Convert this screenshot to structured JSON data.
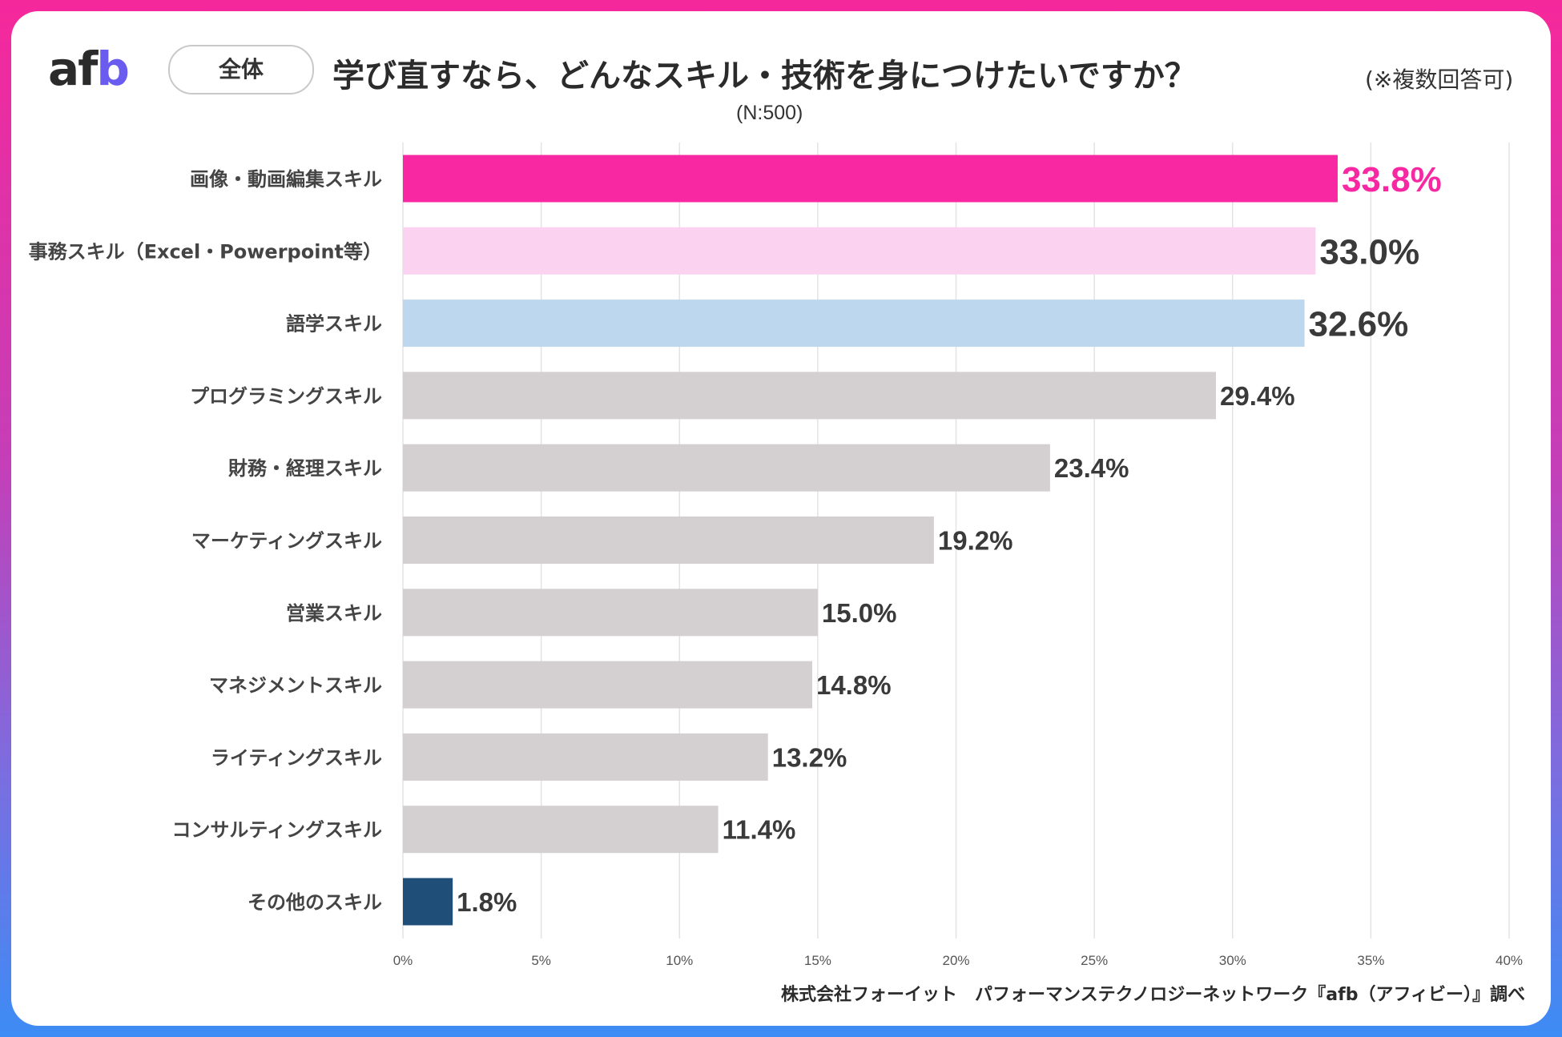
{
  "header": {
    "logo_a": "af",
    "logo_b": "b",
    "segment": "全体",
    "title": "学び直すなら、どんなスキル・技術を身につけたいですか？",
    "note": "(※複数回答可)",
    "sample": "(N:500)"
  },
  "footer": {
    "source": "株式会社フォーイット　パフォーマンステクノロジーネットワーク『afb（アフィビー）』調べ"
  },
  "colors": {
    "highlight": "#f728a1",
    "second": "#fbd3f1",
    "third": "#bdd7ee",
    "default": "#d4d0d1",
    "other": "#1f4e79",
    "label_default": "#3a3a3a"
  },
  "chart_data": {
    "type": "bar",
    "orientation": "horizontal",
    "title": "学び直すなら、どんなスキル・技術を身につけたいですか？",
    "categories": [
      "画像・動画編集スキル",
      "事務スキル（Excel・Powerpoint等）",
      "語学スキル",
      "プログラミングスキル",
      "財務・経理スキル",
      "マーケティングスキル",
      "営業スキル",
      "マネジメントスキル",
      "ライティングスキル",
      "コンサルティングスキル",
      "その他のスキル"
    ],
    "values": [
      33.8,
      33.0,
      32.6,
      29.4,
      23.4,
      19.2,
      15.0,
      14.8,
      13.2,
      11.4,
      1.8
    ],
    "value_labels": [
      "33.8%",
      "33.0%",
      "32.6%",
      "29.4%",
      "23.4%",
      "19.2%",
      "15.0%",
      "14.8%",
      "13.2%",
      "11.4%",
      "1.8%"
    ],
    "xlim": [
      0,
      40
    ],
    "xticks": [
      0,
      5,
      10,
      15,
      20,
      25,
      30,
      35,
      40
    ],
    "xtick_labels": [
      "0%",
      "5%",
      "10%",
      "15%",
      "20%",
      "25%",
      "30%",
      "35%",
      "40%"
    ],
    "grid": true,
    "xlabel": "",
    "ylabel": ""
  }
}
